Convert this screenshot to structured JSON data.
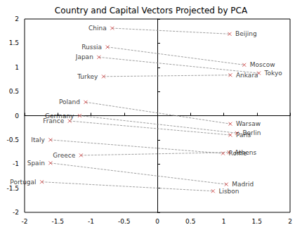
{
  "chart_data": {
    "type": "scatter",
    "title": "Country and Capital Vectors Projected by PCA",
    "xlim": [
      -2,
      2
    ],
    "xticks": [
      -2,
      -1.5,
      -1,
      -0.5,
      0,
      0.5,
      1,
      1.5,
      2
    ],
    "ylim": [
      -2,
      2
    ],
    "yticks": [
      -2,
      -1.5,
      -1,
      -0.5,
      0,
      0.5,
      1,
      1.5,
      2
    ],
    "grid": false,
    "marker": "x",
    "color": "#cc3333",
    "line_style": "dashed",
    "countries": {
      "labels": [
        "China",
        "Russia",
        "Japan",
        "Turkey",
        "Poland",
        "Germany",
        "France",
        "Italy",
        "Greece",
        "Spain",
        "Portugal"
      ],
      "x": [
        -0.68,
        -0.75,
        -0.88,
        -0.81,
        -1.08,
        -1.17,
        -1.32,
        -1.61,
        -1.15,
        -1.61,
        -1.74
      ],
      "y": [
        1.81,
        1.42,
        1.21,
        0.81,
        0.28,
        0.0,
        -0.11,
        -0.5,
        -0.82,
        -0.98,
        -1.37
      ]
    },
    "capitals": {
      "labels": [
        "Beijing",
        "Moscow",
        "Tokyo",
        "Ankara",
        "Warsaw",
        "Berlin",
        "Paris",
        "Rome",
        "Athens",
        "Madrid",
        "Lisbon"
      ],
      "x": [
        1.09,
        1.31,
        1.53,
        1.1,
        1.1,
        1.2,
        1.1,
        0.99,
        1.08,
        1.04,
        0.84
      ],
      "y": [
        1.69,
        1.05,
        0.88,
        0.84,
        -0.17,
        -0.36,
        -0.4,
        -0.78,
        -0.76,
        -1.42,
        -1.56
      ]
    }
  }
}
